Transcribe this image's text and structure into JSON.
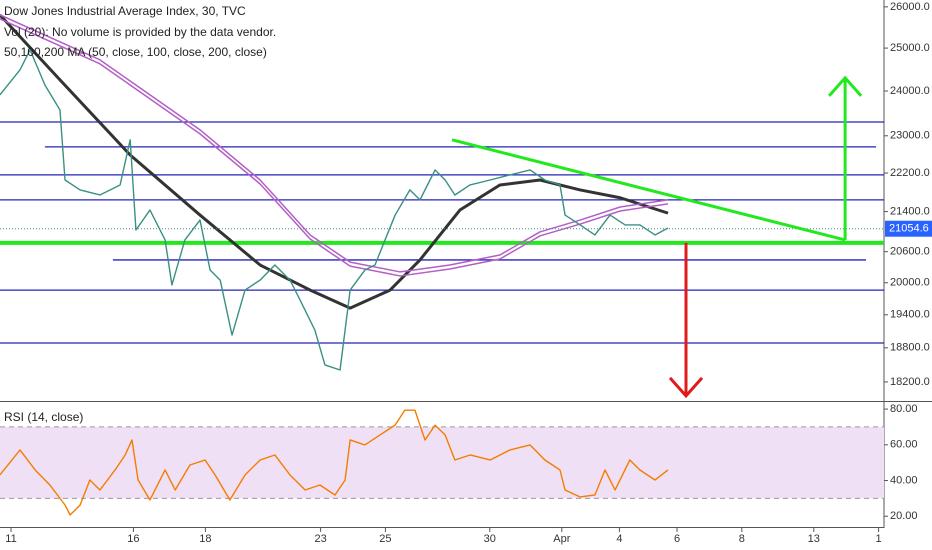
{
  "chart_data": [
    {
      "type": "line",
      "title": "Dow Jones Industrial Average Index, 30, TVC",
      "subtitle": "Vol (20): No volume is provided by the data vendor.",
      "indicator": "50,100,200 MA (50, close, 100, close, 200, close)",
      "log_scale": true,
      "color": "#3a8f86",
      "xlim": [
        -0.306,
        24.25
      ],
      "ylim": [
        17890,
        26170
      ],
      "yticks": [
        {
          "value": 26000,
          "label": "26000.0"
        },
        {
          "value": 25000,
          "label": "25000.0"
        },
        {
          "value": 24000,
          "label": "24000.0"
        },
        {
          "value": 23000,
          "label": "23000.0"
        },
        {
          "value": 22200,
          "label": "22200.0"
        },
        {
          "value": 21400,
          "label": "21400.0"
        },
        {
          "value": 20600,
          "label": "20600.0"
        },
        {
          "value": 20000,
          "label": "20000.0"
        },
        {
          "value": 19400,
          "label": "19400.0"
        },
        {
          "value": 18800,
          "label": "18800.0"
        },
        {
          "value": 18200,
          "label": "18200.0"
        }
      ],
      "x": [
        -0.31,
        0.25,
        0.53,
        0.94,
        1.36,
        1.5,
        1.92,
        2.47,
        3.03,
        3.31,
        3.47,
        3.86,
        4.28,
        4.47,
        4.83,
        5.25,
        5.53,
        5.81,
        6.14,
        6.5,
        6.92,
        7.33,
        7.75,
        8.03,
        8.44,
        8.72,
        9.14,
        9.42,
        9.83,
        10.11,
        10.39,
        10.67,
        11.08,
        11.36,
        11.78,
        12.06,
        12.33,
        12.75,
        13.31,
        13.86,
        14.42,
        14.83,
        15.25,
        15.39,
        15.81,
        16.22,
        16.64,
        17.06,
        17.47,
        17.89,
        18.25
      ],
      "values": [
        23912,
        24488,
        24958,
        24141,
        23571,
        22053,
        21846,
        21741,
        21949,
        22912,
        21029,
        21432,
        20831,
        19958,
        20831,
        21229,
        20243,
        20051,
        19029,
        19861,
        20051,
        20340,
        20051,
        19674,
        19120,
        18496,
        18408,
        19861,
        20243,
        20340,
        20831,
        21330,
        21846,
        21640,
        22264,
        22053,
        21741,
        21949,
        22053,
        22160,
        22264,
        22053,
        21949,
        21330,
        21130,
        20930,
        21330,
        21130,
        21130,
        20930,
        21068
      ],
      "last_price": 21054.6,
      "last_price_color": "#2962ff",
      "moving_averages": [
        {
          "color": "#333333",
          "x": [
            -0.31,
            1.36,
            3.31,
            5.25,
            6.92,
            8.31,
            9.42,
            10.53,
            11.36,
            12.47,
            13.58,
            14.69,
            15.81,
            16.92,
            18.25
          ],
          "values": [
            25803,
            24256,
            22583,
            21330,
            20340,
            19861,
            19523,
            19861,
            20439,
            21432,
            21949,
            22053,
            21846,
            21684,
            21369
          ]
        },
        {
          "color": "#b35fc6",
          "x": [
            -0.31,
            2.47,
            5.25,
            6.92,
            8.31,
            9.42,
            10.81,
            12.19,
            13.58,
            14.69,
            15.81,
            16.92,
            18.25
          ],
          "values": [
            25803,
            24722,
            23130,
            22053,
            20930,
            20397,
            20207,
            20340,
            20535,
            20990,
            21229,
            21494,
            21640
          ]
        },
        {
          "color": "#b35fc6",
          "x": [
            -0.31,
            2.47,
            5.25,
            6.92,
            8.31,
            9.42,
            10.81,
            12.19,
            13.58,
            14.69,
            15.81,
            16.92,
            18.25
          ],
          "values": [
            25705,
            24628,
            23042,
            21969,
            20850,
            20319,
            20130,
            20263,
            20457,
            20910,
            21148,
            21412,
            21558
          ]
        }
      ],
      "levels": [
        {
          "value": 23304,
          "x": [
            -0.31,
            24.25
          ],
          "color": "#2323b8"
        },
        {
          "value": 22758,
          "x": [
            0.94,
            24.03
          ],
          "color": "#2323b8"
        },
        {
          "value": 22160,
          "x": [
            -0.31,
            24.25
          ],
          "color": "#2323b8"
        },
        {
          "value": 21640,
          "x": [
            -0.31,
            24.25
          ],
          "color": "#2323b8"
        },
        {
          "value": 20439,
          "x": [
            2.83,
            23.75
          ],
          "color": "#2323b8"
        },
        {
          "value": 19861,
          "x": [
            -0.31,
            24.25
          ],
          "color": "#2323b8"
        },
        {
          "value": 18886,
          "x": [
            -0.31,
            24.25
          ],
          "color": "#2323b8"
        }
      ],
      "support_level": {
        "value": 20772,
        "x": [
          -0.31,
          24.25
        ],
        "color": "#22e81e"
      },
      "trend_line": {
        "x": [
          12.25,
          23.17
        ],
        "values": [
          22912,
          20831
        ],
        "color": "#22e81e"
      },
      "arrows": [
        {
          "x": 23.17,
          "from": 20831,
          "to": 24302,
          "color": "#22e81e"
        },
        {
          "x": 18.75,
          "from": 20772,
          "to": 17960,
          "color": "#e01b1b"
        }
      ]
    },
    {
      "type": "line",
      "title": "RSI (14, close)",
      "color": "#f57c00",
      "xlim": [
        -0.306,
        24.25
      ],
      "ylim": [
        15.1,
        83.4
      ],
      "band": [
        30,
        70
      ],
      "band_color": "#efe0f5",
      "yticks": [
        {
          "value": 80,
          "label": "80.00"
        },
        {
          "value": 60,
          "label": "60.00"
        },
        {
          "value": 40,
          "label": "40.00"
        },
        {
          "value": 20,
          "label": "20.00"
        }
      ],
      "xticks": [
        {
          "value": 0,
          "label": "11"
        },
        {
          "value": 3.4,
          "label": "16"
        },
        {
          "value": 5.4,
          "label": "18"
        },
        {
          "value": 8.6,
          "label": "23"
        },
        {
          "value": 10.4,
          "label": "25"
        },
        {
          "value": 13.3,
          "label": "30"
        },
        {
          "value": 15.3,
          "label": "Apr"
        },
        {
          "value": 16.9,
          "label": "4"
        },
        {
          "value": 18.5,
          "label": "6"
        },
        {
          "value": 20.3,
          "label": "8"
        },
        {
          "value": 22.3,
          "label": "13"
        },
        {
          "value": 24.1,
          "label": "1"
        }
      ],
      "x": [
        -0.31,
        0.25,
        0.67,
        1.08,
        1.5,
        1.64,
        1.92,
        2.19,
        2.47,
        2.89,
        3.17,
        3.36,
        3.53,
        3.86,
        4.28,
        4.56,
        4.97,
        5.39,
        5.67,
        6.08,
        6.5,
        6.92,
        7.33,
        7.75,
        8.17,
        8.58,
        9.0,
        9.28,
        9.42,
        9.83,
        10.25,
        10.67,
        10.94,
        11.22,
        11.5,
        11.78,
        12.06,
        12.33,
        12.75,
        13.31,
        13.86,
        14.42,
        14.83,
        15.25,
        15.39,
        15.81,
        16.22,
        16.5,
        16.78,
        17.19,
        17.47,
        17.89,
        18.25
      ],
      "values": [
        43.1,
        57.1,
        45.9,
        37.5,
        26.3,
        20.7,
        26.3,
        40.3,
        34.7,
        45.9,
        54.3,
        62.7,
        40.3,
        29.1,
        45.9,
        34.7,
        48.7,
        51.5,
        43.1,
        29.1,
        43.1,
        51.5,
        54.3,
        43.1,
        34.7,
        37.5,
        31.9,
        40.3,
        62.7,
        59.9,
        65.5,
        71.0,
        79.4,
        79.4,
        62.7,
        71.0,
        65.5,
        51.5,
        54.3,
        51.5,
        57.1,
        59.9,
        51.5,
        45.9,
        34.7,
        30.8,
        31.9,
        45.9,
        34.7,
        51.5,
        45.9,
        40.3,
        45.9
      ]
    }
  ]
}
